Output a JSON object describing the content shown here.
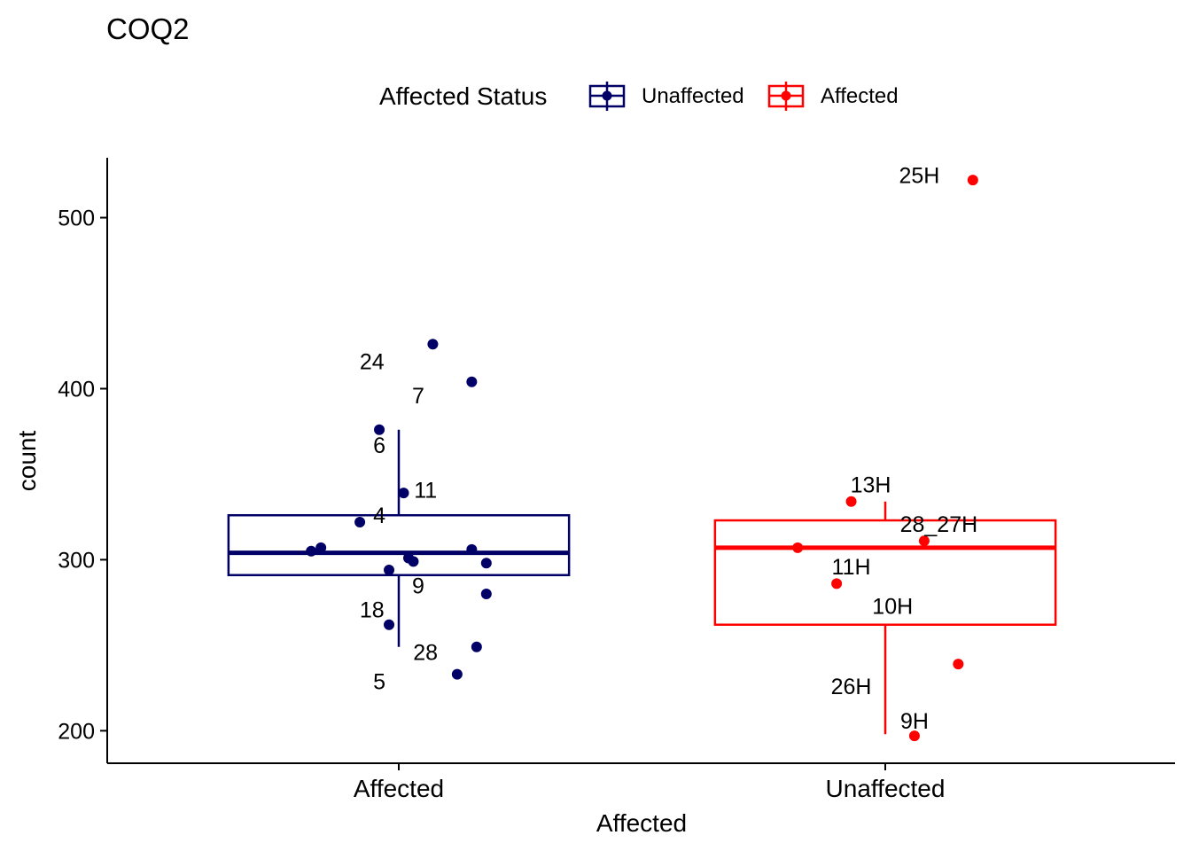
{
  "chart_data": {
    "type": "box",
    "title": "COQ2",
    "xlabel": "Affected",
    "ylabel": "count",
    "ylim": [
      181,
      535
    ],
    "yticks": [
      200,
      300,
      400,
      500
    ],
    "categories": [
      "Affected",
      "Unaffected"
    ],
    "legend": {
      "title": "Affected Status",
      "position": "top",
      "entries": [
        {
          "label": "Unaffected",
          "color": "#000066"
        },
        {
          "label": "Affected",
          "color": "#ff0000"
        }
      ]
    },
    "boxes": [
      {
        "category": "Affected",
        "color": "#000066",
        "whisker_low": 249,
        "q1": 291,
        "median": 304,
        "q3": 326,
        "whisker_high": 376
      },
      {
        "category": "Unaffected",
        "color": "#ff0000",
        "whisker_low": 198,
        "q1": 262,
        "median": 307,
        "q3": 323,
        "whisker_high": 334
      }
    ],
    "points": [
      {
        "category": "Affected",
        "jitter": 0.07,
        "y": 426,
        "color": "#000066"
      },
      {
        "category": "Affected",
        "jitter": 0.15,
        "y": 404,
        "color": "#000066"
      },
      {
        "category": "Affected",
        "jitter": -0.04,
        "y": 376,
        "color": "#000066"
      },
      {
        "category": "Affected",
        "jitter": 0.01,
        "y": 339,
        "color": "#000066"
      },
      {
        "category": "Affected",
        "jitter": -0.08,
        "y": 322,
        "color": "#000066"
      },
      {
        "category": "Affected",
        "jitter": -0.18,
        "y": 305,
        "color": "#000066"
      },
      {
        "category": "Affected",
        "jitter": -0.16,
        "y": 307,
        "color": "#000066"
      },
      {
        "category": "Affected",
        "jitter": 0.15,
        "y": 306,
        "color": "#000066"
      },
      {
        "category": "Affected",
        "jitter": 0.02,
        "y": 301,
        "color": "#000066"
      },
      {
        "category": "Affected",
        "jitter": 0.03,
        "y": 299,
        "color": "#000066"
      },
      {
        "category": "Affected",
        "jitter": 0.18,
        "y": 298,
        "color": "#000066"
      },
      {
        "category": "Affected",
        "jitter": -0.02,
        "y": 294,
        "color": "#000066"
      },
      {
        "category": "Affected",
        "jitter": 0.18,
        "y": 280,
        "color": "#000066"
      },
      {
        "category": "Affected",
        "jitter": -0.02,
        "y": 262,
        "color": "#000066"
      },
      {
        "category": "Affected",
        "jitter": 0.16,
        "y": 249,
        "color": "#000066"
      },
      {
        "category": "Affected",
        "jitter": 0.12,
        "y": 233,
        "color": "#000066"
      },
      {
        "category": "Unaffected",
        "jitter": 0.18,
        "y": 522,
        "color": "#ff0000"
      },
      {
        "category": "Unaffected",
        "jitter": -0.07,
        "y": 334,
        "color": "#ff0000"
      },
      {
        "category": "Unaffected",
        "jitter": 0.08,
        "y": 311,
        "color": "#ff0000"
      },
      {
        "category": "Unaffected",
        "jitter": -0.18,
        "y": 307,
        "color": "#ff0000"
      },
      {
        "category": "Unaffected",
        "jitter": -0.1,
        "y": 286,
        "color": "#ff0000"
      },
      {
        "category": "Unaffected",
        "jitter": 0.15,
        "y": 239,
        "color": "#ff0000"
      },
      {
        "category": "Unaffected",
        "jitter": 0.06,
        "y": 197,
        "color": "#ff0000"
      }
    ],
    "labels": [
      {
        "text": "24",
        "category": "Affected",
        "offset": -0.055,
        "y": 416
      },
      {
        "text": "7",
        "category": "Affected",
        "offset": 0.04,
        "y": 396
      },
      {
        "text": "6",
        "category": "Affected",
        "offset": -0.04,
        "y": 367
      },
      {
        "text": "11",
        "category": "Affected",
        "offset": 0.055,
        "y": 341
      },
      {
        "text": "4",
        "category": "Affected",
        "offset": -0.04,
        "y": 326
      },
      {
        "text": "9",
        "category": "Affected",
        "offset": 0.04,
        "y": 285
      },
      {
        "text": "18",
        "category": "Affected",
        "offset": -0.055,
        "y": 271
      },
      {
        "text": "28",
        "category": "Affected",
        "offset": 0.055,
        "y": 246
      },
      {
        "text": "5",
        "category": "Affected",
        "offset": -0.04,
        "y": 229
      },
      {
        "text": "25H",
        "category": "Unaffected",
        "offset": 0.07,
        "y": 525
      },
      {
        "text": "13H",
        "category": "Unaffected",
        "offset": -0.03,
        "y": 344
      },
      {
        "text": "28_27H",
        "category": "Unaffected",
        "offset": 0.11,
        "y": 321
      },
      {
        "text": "11H",
        "category": "Unaffected",
        "offset": -0.07,
        "y": 296
      },
      {
        "text": "10H",
        "category": "Unaffected",
        "offset": 0.015,
        "y": 273
      },
      {
        "text": "26H",
        "category": "Unaffected",
        "offset": -0.07,
        "y": 226
      },
      {
        "text": "9H",
        "category": "Unaffected",
        "offset": 0.06,
        "y": 206
      }
    ]
  }
}
